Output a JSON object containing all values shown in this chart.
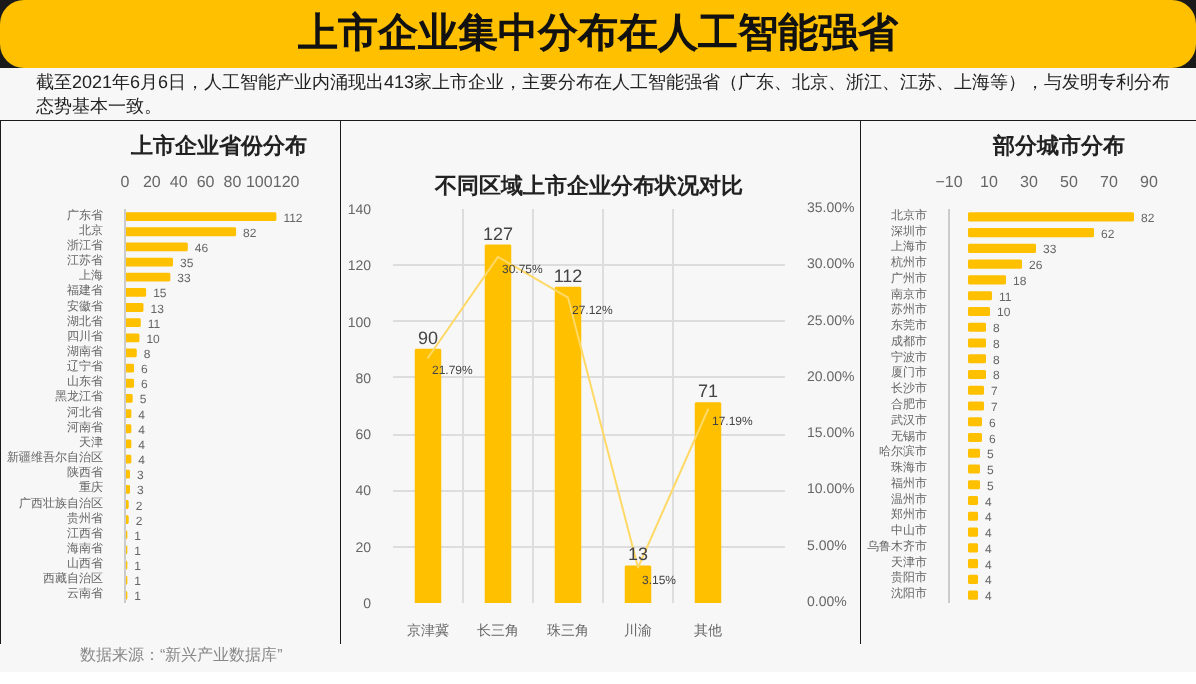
{
  "chart_data": [
    {
      "type": "other",
      "title": "上市企业集中分布在人工智能强省",
      "subtitle": "截至2021年6月6日，人工智能产业内涌现出413家上市企业，主要分布在人工智能强省（广东、北京、浙江、江苏、上海等），与发明专利分布态势基本一致。",
      "annotations": [
        "数据来源：“新兴产业数据库”"
      ]
    },
    {
      "type": "bar",
      "orientation": "horizontal",
      "title": "上市企业省份分布",
      "categories": [
        "广东省",
        "北京",
        "浙江省",
        "江苏省",
        "上海",
        "福建省",
        "安徽省",
        "湖北省",
        "四川省",
        "湖南省",
        "辽宁省",
        "山东省",
        "黑龙江省",
        "河北省",
        "河南省",
        "天津",
        "新疆维吾尔自治区",
        "陕西省",
        "重庆",
        "广西壮族自治区",
        "贵州省",
        "江西省",
        "海南省",
        "山西省",
        "西藏自治区",
        "云南省"
      ],
      "values": [
        112,
        82,
        46,
        35,
        33,
        15,
        13,
        11,
        10,
        8,
        6,
        6,
        5,
        4,
        4,
        4,
        4,
        3,
        3,
        2,
        2,
        1,
        1,
        1,
        1,
        1
      ],
      "color": "#ffc000",
      "xlim": [
        0,
        140
      ],
      "xticks": [
        0,
        20,
        40,
        60,
        80,
        100,
        120
      ],
      "data_labels": true
    },
    {
      "type": "bar",
      "title": "不同区域上市企业分布状况对比",
      "categories": [
        "京津冀",
        "长三角",
        "珠三角",
        "川渝",
        "其他"
      ],
      "series": [
        {
          "type": "bar",
          "color": "#ffc000",
          "values": [
            90,
            127,
            112,
            13,
            71
          ]
        },
        {
          "type": "line",
          "axis": "y2",
          "color": "#ffd966",
          "values": [
            21.79,
            30.75,
            27.12,
            3.15,
            17.19
          ],
          "value_labels": [
            "21.79%",
            "30.75%",
            "27.12%",
            "3.15%",
            "17.19%"
          ]
        }
      ],
      "ylim": [
        0,
        140
      ],
      "yticks": [
        0,
        20,
        40,
        60,
        80,
        100,
        120,
        140
      ],
      "y2lim": [
        0,
        35
      ],
      "y2ticks": [
        {
          "value": 0,
          "label": "0.00%"
        },
        {
          "value": 5,
          "label": "5.00%"
        },
        {
          "value": 10,
          "label": "10.00%"
        },
        {
          "value": 15,
          "label": "15.00%"
        },
        {
          "value": 20,
          "label": "20.00%"
        },
        {
          "value": 25,
          "label": "25.00%"
        },
        {
          "value": 30,
          "label": "30.00%"
        },
        {
          "value": 35,
          "label": "35.00%"
        }
      ],
      "grid": true,
      "data_labels": true
    },
    {
      "type": "bar",
      "orientation": "horizontal",
      "title": "部分城市分布",
      "categories": [
        "北京市",
        "深圳市",
        "上海市",
        "杭州市",
        "广州市",
        "南京市",
        "苏州市",
        "东莞市",
        "成都市",
        "宁波市",
        "厦门市",
        "长沙市",
        "合肥市",
        "武汉市",
        "无锡市",
        "哈尔滨市",
        "珠海市",
        "福州市",
        "温州市",
        "郑州市",
        "中山市",
        "乌鲁木齐市",
        "天津市",
        "贵阳市",
        "沈阳市"
      ],
      "values": [
        82,
        62,
        33,
        26,
        18,
        11,
        10,
        8,
        8,
        8,
        8,
        7,
        7,
        6,
        6,
        5,
        5,
        5,
        4,
        4,
        4,
        4,
        4,
        4,
        4
      ],
      "color": "#ffc000",
      "xlim": [
        -10,
        100
      ],
      "xticks": [
        -10,
        10,
        30,
        50,
        70,
        90
      ],
      "data_labels": true
    }
  ]
}
